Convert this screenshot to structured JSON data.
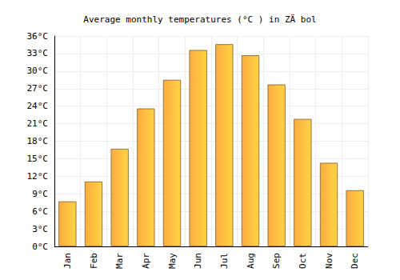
{
  "chart_data": {
    "type": "bar",
    "title": "Average monthly temperatures (°C ) in ZÄ bol",
    "categories": [
      "Jan",
      "Feb",
      "Mar",
      "Apr",
      "May",
      "Jun",
      "Jul",
      "Aug",
      "Sep",
      "Oct",
      "Nov",
      "Dec"
    ],
    "values": [
      7.7,
      11.1,
      16.7,
      23.6,
      28.5,
      33.6,
      34.6,
      32.7,
      27.7,
      21.8,
      14.3,
      9.6
    ],
    "color": "#fca936",
    "ylim": [
      0,
      36
    ],
    "yticks": [
      {
        "value": 0,
        "label": "0°C"
      },
      {
        "value": 3,
        "label": "3°C"
      },
      {
        "value": 6,
        "label": "6°C"
      },
      {
        "value": 9,
        "label": "9°C"
      },
      {
        "value": 12,
        "label": "12°C"
      },
      {
        "value": 15,
        "label": "15°C"
      },
      {
        "value": 18,
        "label": "18°C"
      },
      {
        "value": 21,
        "label": "21°C"
      },
      {
        "value": 24,
        "label": "24°C"
      },
      {
        "value": 27,
        "label": "27°C"
      },
      {
        "value": 30,
        "label": "30°C"
      },
      {
        "value": 33,
        "label": "33°C"
      },
      {
        "value": 36,
        "label": "36°C"
      }
    ],
    "grid": true
  }
}
